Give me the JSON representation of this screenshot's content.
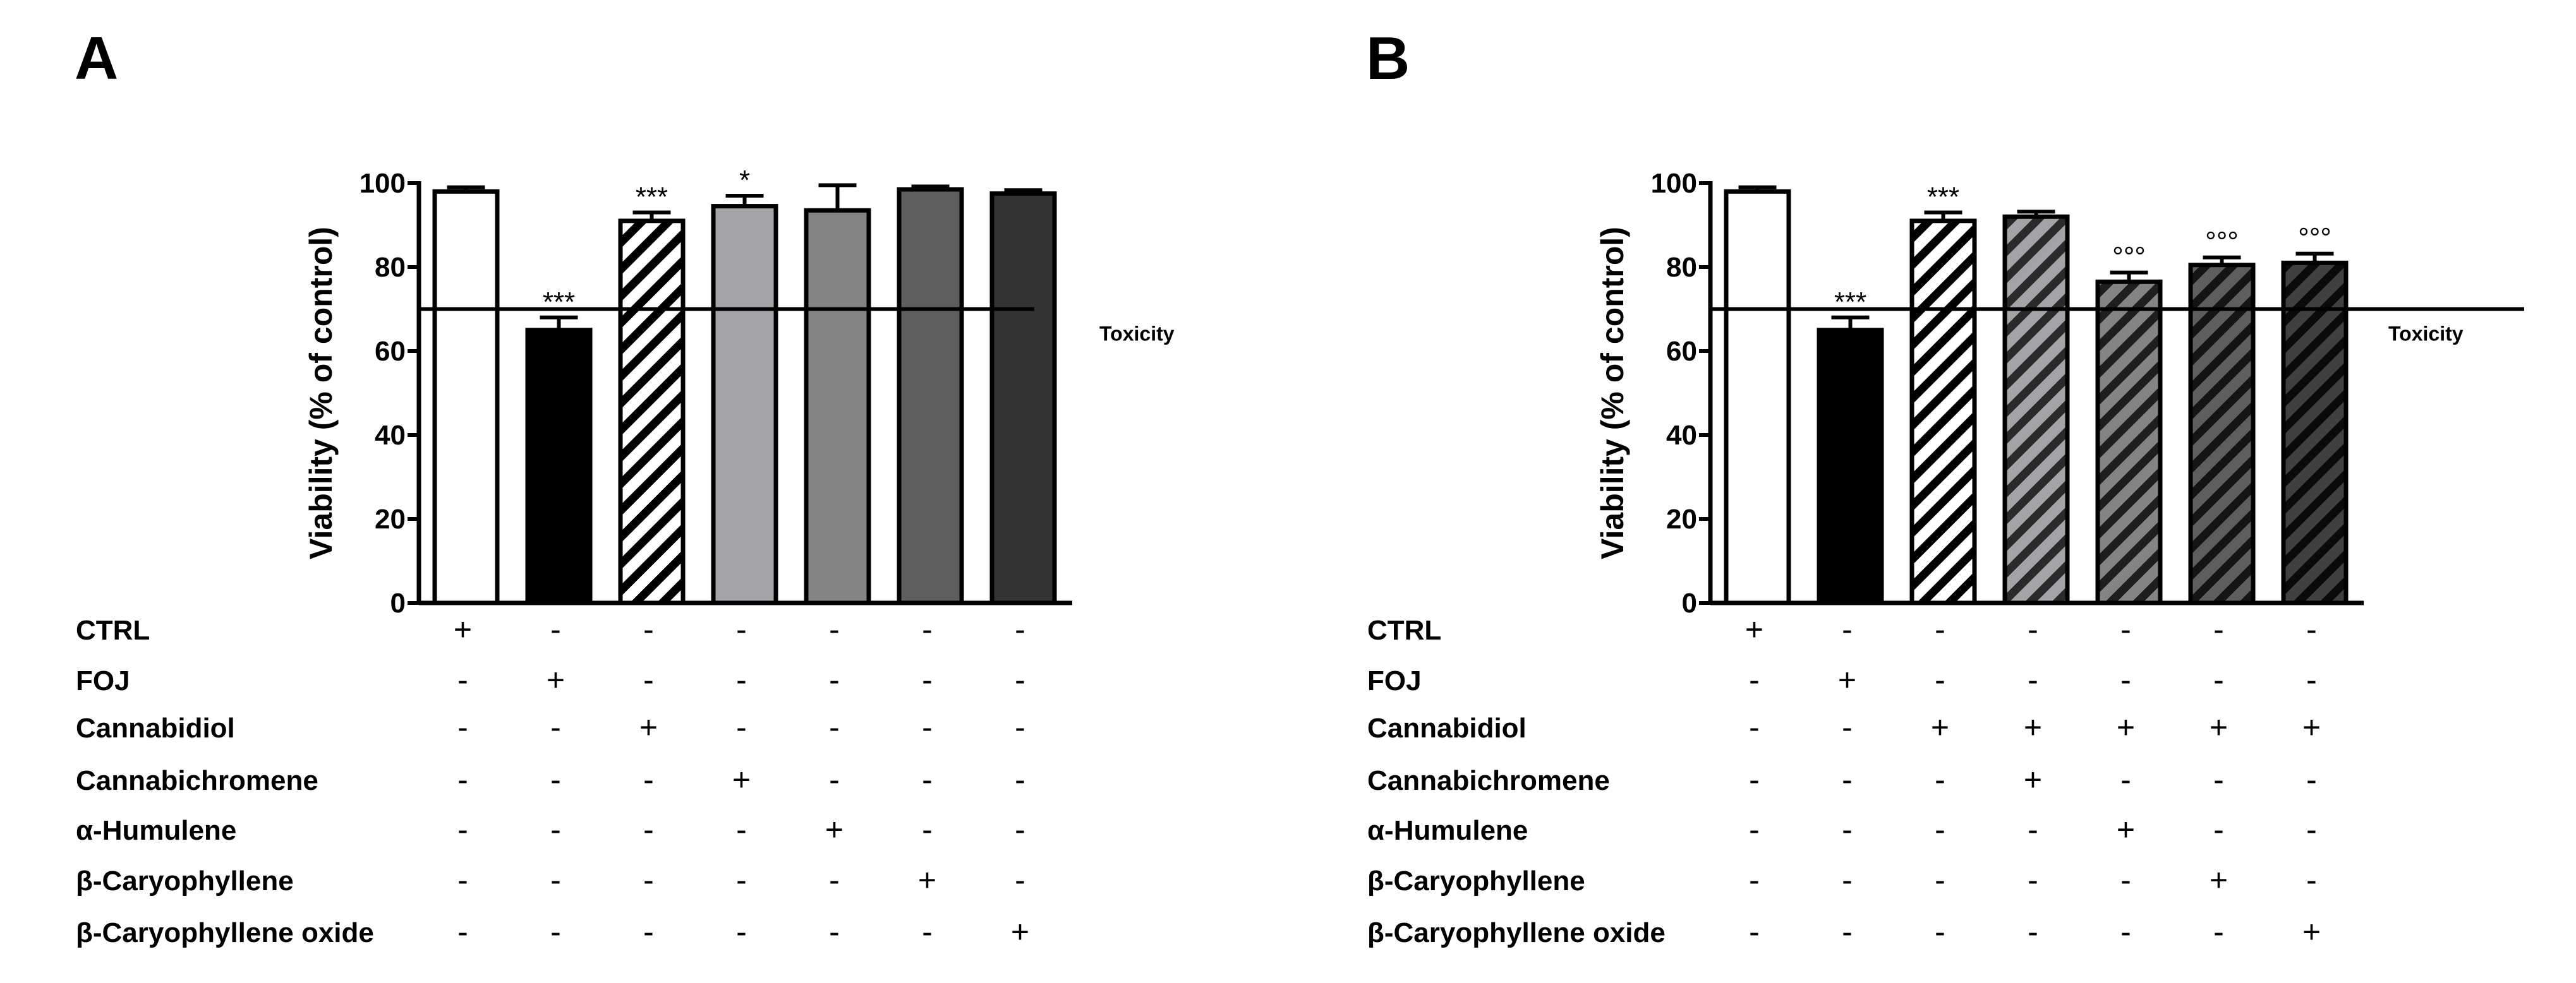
{
  "figure": {
    "tick_labels": [
      "0",
      "20",
      "40",
      "60",
      "80",
      "100"
    ],
    "row_labels": [
      "CTRL",
      "FOJ",
      "Cannabidiol",
      "Cannabichromene",
      "α-Humulene",
      "β-Caryophyllene",
      "β-Caryophyllene oxide"
    ]
  },
  "chart_data": [
    {
      "type": "bar",
      "panel_label": "A",
      "ylabel": "Viability (% of control)",
      "ylim": [
        0,
        100
      ],
      "yticks": [
        0,
        20,
        40,
        60,
        80,
        100
      ],
      "threshold": {
        "value": 70,
        "label": "Toxicity"
      },
      "bars": [
        {
          "value": 98,
          "error": 1,
          "fill": "#ffffff",
          "hatch": "none",
          "annotation": ""
        },
        {
          "value": 65,
          "error": 3,
          "fill": "#000000",
          "hatch": "none",
          "annotation": "***"
        },
        {
          "value": 91,
          "error": 2,
          "fill": "#ffffff",
          "hatch": "#000000",
          "annotation": "***"
        },
        {
          "value": 94.5,
          "error": 2.5,
          "fill": "#a3a3a8",
          "hatch": "none",
          "annotation": "*"
        },
        {
          "value": 93.5,
          "error": 6,
          "fill": "#848484",
          "hatch": "none",
          "annotation": ""
        },
        {
          "value": 98.5,
          "error": 0.7,
          "fill": "#5e5e5e",
          "hatch": "none",
          "annotation": ""
        },
        {
          "value": 97.5,
          "error": 0.8,
          "fill": "#333333",
          "hatch": "none",
          "annotation": ""
        }
      ],
      "treatment_table": [
        [
          "+",
          "-",
          "-",
          "-",
          "-",
          "-",
          "-"
        ],
        [
          "-",
          "+",
          "-",
          "-",
          "-",
          "-",
          "-"
        ],
        [
          "-",
          "-",
          "+",
          "-",
          "-",
          "-",
          "-"
        ],
        [
          "-",
          "-",
          "-",
          "+",
          "-",
          "-",
          "-"
        ],
        [
          "-",
          "-",
          "-",
          "-",
          "+",
          "-",
          "-"
        ],
        [
          "-",
          "-",
          "-",
          "-",
          "-",
          "+",
          "-"
        ],
        [
          "-",
          "-",
          "-",
          "-",
          "-",
          "-",
          "+"
        ]
      ]
    },
    {
      "type": "bar",
      "panel_label": "B",
      "ylabel": "Viability (% of control)",
      "ylim": [
        0,
        100
      ],
      "yticks": [
        0,
        20,
        40,
        60,
        80,
        100
      ],
      "threshold": {
        "value": 70,
        "label": "Toxicity"
      },
      "bars": [
        {
          "value": 98,
          "error": 1,
          "fill": "#ffffff",
          "hatch": "none",
          "annotation": ""
        },
        {
          "value": 65,
          "error": 3,
          "fill": "#000000",
          "hatch": "none",
          "annotation": "***"
        },
        {
          "value": 91,
          "error": 2,
          "fill": "#ffffff",
          "hatch": "#000000",
          "annotation": "***"
        },
        {
          "value": 92,
          "error": 1.2,
          "fill": "#a3a3a8",
          "hatch": "#2a2a2a",
          "annotation": ""
        },
        {
          "value": 76.5,
          "error": 2.2,
          "fill": "#848484",
          "hatch": "#1e1e1e",
          "annotation": "°°°"
        },
        {
          "value": 80.5,
          "error": 1.8,
          "fill": "#5e5e5e",
          "hatch": "#141414",
          "annotation": "°°°"
        },
        {
          "value": 81,
          "error": 2.2,
          "fill": "#404040",
          "hatch": "#0a0a0a",
          "annotation": "°°°"
        }
      ],
      "treatment_table": [
        [
          "+",
          "-",
          "-",
          "-",
          "-",
          "-",
          "-"
        ],
        [
          "-",
          "+",
          "-",
          "-",
          "-",
          "-",
          "-"
        ],
        [
          "-",
          "-",
          "+",
          "+",
          "+",
          "+",
          "+"
        ],
        [
          "-",
          "-",
          "-",
          "+",
          "-",
          "-",
          "-"
        ],
        [
          "-",
          "-",
          "-",
          "-",
          "+",
          "-",
          "-"
        ],
        [
          "-",
          "-",
          "-",
          "-",
          "-",
          "+",
          "-"
        ],
        [
          "-",
          "-",
          "-",
          "-",
          "-",
          "-",
          "+"
        ]
      ]
    }
  ]
}
